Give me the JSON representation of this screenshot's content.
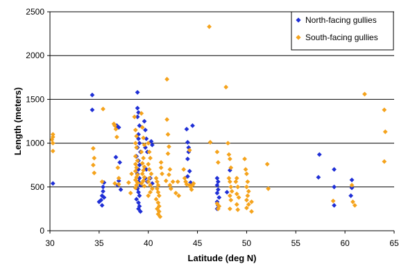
{
  "chart_data": {
    "type": "scatter",
    "xlabel": "Latitude (deg N)",
    "ylabel": "Length (meters)",
    "xlim": [
      30,
      65
    ],
    "ylim": [
      0,
      2500
    ],
    "xticks": [
      30,
      35,
      40,
      45,
      50,
      55,
      60,
      65
    ],
    "yticks": [
      0,
      500,
      1000,
      1500,
      2000,
      2500
    ],
    "grid": "horizontal",
    "legend_position": "top-right",
    "series": [
      {
        "name": "North-facing gullies",
        "color": "#1f2fd6",
        "marker": "diamond",
        "points": [
          [
            30.3,
            540
          ],
          [
            34.3,
            1550
          ],
          [
            34.3,
            1380
          ],
          [
            35.0,
            330
          ],
          [
            35.2,
            350
          ],
          [
            35.3,
            290
          ],
          [
            35.3,
            400
          ],
          [
            35.4,
            450
          ],
          [
            35.5,
            380
          ],
          [
            35.4,
            500
          ],
          [
            35.5,
            550
          ],
          [
            36.7,
            840
          ],
          [
            36.8,
            1200
          ],
          [
            36.9,
            520
          ],
          [
            37.0,
            570
          ],
          [
            37.1,
            780
          ],
          [
            37.2,
            470
          ],
          [
            37.0,
            1180
          ],
          [
            38.9,
            1580
          ],
          [
            38.9,
            1400
          ],
          [
            39.0,
            1350
          ],
          [
            38.9,
            1300
          ],
          [
            39.1,
            1200
          ],
          [
            39.0,
            1100
          ],
          [
            39.0,
            1050
          ],
          [
            39.1,
            1000
          ],
          [
            38.9,
            950
          ],
          [
            39.2,
            900
          ],
          [
            38.8,
            850
          ],
          [
            39.0,
            800
          ],
          [
            39.1,
            750
          ],
          [
            39.0,
            700
          ],
          [
            38.9,
            650
          ],
          [
            39.1,
            600
          ],
          [
            39.0,
            560
          ],
          [
            39.2,
            520
          ],
          [
            38.9,
            480
          ],
          [
            39.0,
            440
          ],
          [
            39.1,
            400
          ],
          [
            38.8,
            360
          ],
          [
            39.0,
            320
          ],
          [
            39.1,
            280
          ],
          [
            39.0,
            250
          ],
          [
            39.2,
            220
          ],
          [
            39.6,
            1250
          ],
          [
            39.7,
            1150
          ],
          [
            39.8,
            1050
          ],
          [
            39.7,
            950
          ],
          [
            39.9,
            900
          ],
          [
            39.8,
            700
          ],
          [
            39.7,
            600
          ],
          [
            39.9,
            560
          ],
          [
            40.3,
            1020
          ],
          [
            40.4,
            980
          ],
          [
            40.2,
            600
          ],
          [
            40.4,
            540
          ],
          [
            43.9,
            1160
          ],
          [
            44.0,
            1010
          ],
          [
            44.1,
            950
          ],
          [
            44.1,
            900
          ],
          [
            44.0,
            820
          ],
          [
            44.2,
            680
          ],
          [
            44.0,
            620
          ],
          [
            44.3,
            550
          ],
          [
            44.5,
            1200
          ],
          [
            47.0,
            600
          ],
          [
            47.1,
            560
          ],
          [
            47.0,
            520
          ],
          [
            47.1,
            470
          ],
          [
            47.0,
            430
          ],
          [
            47.2,
            380
          ],
          [
            47.0,
            330
          ],
          [
            47.1,
            290
          ],
          [
            47.0,
            250
          ],
          [
            48.3,
            690
          ],
          [
            48.0,
            440
          ],
          [
            57.4,
            870
          ],
          [
            57.3,
            610
          ],
          [
            58.9,
            700
          ],
          [
            58.9,
            500
          ],
          [
            58.9,
            290
          ],
          [
            60.7,
            580
          ],
          [
            60.7,
            490
          ],
          [
            60.6,
            400
          ]
        ]
      },
      {
        "name": "South-facing gullies",
        "color": "#f5a31c",
        "marker": "diamond",
        "points": [
          [
            30.3,
            1100
          ],
          [
            30.3,
            1070
          ],
          [
            30.2,
            1040
          ],
          [
            30.3,
            1000
          ],
          [
            30.3,
            910
          ],
          [
            34.4,
            940
          ],
          [
            34.5,
            830
          ],
          [
            34.4,
            750
          ],
          [
            34.5,
            660
          ],
          [
            35.4,
            1390
          ],
          [
            35.3,
            560
          ],
          [
            36.5,
            1220
          ],
          [
            36.6,
            1200
          ],
          [
            36.7,
            1160
          ],
          [
            36.8,
            1070
          ],
          [
            36.9,
            720
          ],
          [
            37.0,
            600
          ],
          [
            37.0,
            530
          ],
          [
            36.6,
            540
          ],
          [
            38.0,
            550
          ],
          [
            38.2,
            430
          ],
          [
            38.3,
            650
          ],
          [
            38.6,
            1300
          ],
          [
            38.7,
            1150
          ],
          [
            38.8,
            1080
          ],
          [
            38.7,
            1000
          ],
          [
            38.8,
            950
          ],
          [
            38.7,
            850
          ],
          [
            38.9,
            800
          ],
          [
            38.7,
            760
          ],
          [
            38.8,
            720
          ],
          [
            38.7,
            680
          ],
          [
            38.9,
            640
          ],
          [
            38.8,
            610
          ],
          [
            38.7,
            580
          ],
          [
            38.9,
            550
          ],
          [
            38.8,
            520
          ],
          [
            38.7,
            490
          ],
          [
            39.3,
            1340
          ],
          [
            39.4,
            1180
          ],
          [
            39.5,
            1060
          ],
          [
            39.6,
            980
          ],
          [
            39.3,
            900
          ],
          [
            39.5,
            830
          ],
          [
            39.4,
            770
          ],
          [
            39.6,
            730
          ],
          [
            39.5,
            690
          ],
          [
            39.4,
            650
          ],
          [
            39.6,
            610
          ],
          [
            39.5,
            570
          ],
          [
            39.3,
            540
          ],
          [
            39.6,
            510
          ],
          [
            40.0,
            1000
          ],
          [
            40.1,
            900
          ],
          [
            40.2,
            830
          ],
          [
            40.0,
            760
          ],
          [
            40.1,
            700
          ],
          [
            40.3,
            650
          ],
          [
            40.1,
            600
          ],
          [
            40.0,
            560
          ],
          [
            40.2,
            520
          ],
          [
            40.4,
            480
          ],
          [
            40.2,
            440
          ],
          [
            40.0,
            400
          ],
          [
            40.8,
            600
          ],
          [
            40.9,
            560
          ],
          [
            41.0,
            520
          ],
          [
            40.9,
            480
          ],
          [
            41.0,
            440
          ],
          [
            41.1,
            400
          ],
          [
            40.8,
            360
          ],
          [
            41.0,
            320
          ],
          [
            41.1,
            280
          ],
          [
            40.9,
            250
          ],
          [
            41.1,
            220
          ],
          [
            41.0,
            190
          ],
          [
            41.2,
            160
          ],
          [
            41.3,
            780
          ],
          [
            41.3,
            720
          ],
          [
            41.4,
            650
          ],
          [
            41.9,
            1730
          ],
          [
            41.9,
            1270
          ],
          [
            42.0,
            1100
          ],
          [
            42.1,
            960
          ],
          [
            42.0,
            880
          ],
          [
            42.2,
            700
          ],
          [
            42.1,
            640
          ],
          [
            41.8,
            570
          ],
          [
            42.2,
            520
          ],
          [
            42.3,
            480
          ],
          [
            42.5,
            560
          ],
          [
            42.8,
            430
          ],
          [
            43.0,
            560
          ],
          [
            43.1,
            400
          ],
          [
            43.6,
            700
          ],
          [
            43.7,
            600
          ],
          [
            43.8,
            560
          ],
          [
            43.9,
            530
          ],
          [
            44.2,
            520
          ],
          [
            44.3,
            500
          ],
          [
            44.5,
            520
          ],
          [
            44.4,
            470
          ],
          [
            44.6,
            540
          ],
          [
            44.2,
            920
          ],
          [
            46.2,
            2330
          ],
          [
            46.3,
            1010
          ],
          [
            47.0,
            900
          ],
          [
            47.1,
            780
          ],
          [
            47.0,
            310
          ],
          [
            47.2,
            280
          ],
          [
            47.1,
            250
          ],
          [
            47.9,
            1640
          ],
          [
            48.1,
            1000
          ],
          [
            48.2,
            870
          ],
          [
            48.3,
            820
          ],
          [
            48.4,
            720
          ],
          [
            48.2,
            600
          ],
          [
            48.3,
            560
          ],
          [
            48.4,
            500
          ],
          [
            48.5,
            450
          ],
          [
            48.3,
            400
          ],
          [
            48.4,
            350
          ],
          [
            48.3,
            250
          ],
          [
            48.9,
            560
          ],
          [
            49.0,
            600
          ],
          [
            49.1,
            500
          ],
          [
            49.0,
            420
          ],
          [
            49.2,
            380
          ],
          [
            49.0,
            300
          ],
          [
            49.1,
            240
          ],
          [
            49.8,
            820
          ],
          [
            49.9,
            700
          ],
          [
            50.0,
            650
          ],
          [
            50.1,
            560
          ],
          [
            50.0,
            500
          ],
          [
            50.2,
            450
          ],
          [
            50.1,
            400
          ],
          [
            50.0,
            350
          ],
          [
            50.2,
            300
          ],
          [
            50.0,
            260
          ],
          [
            50.5,
            330
          ],
          [
            50.5,
            220
          ],
          [
            52.1,
            760
          ],
          [
            52.2,
            480
          ],
          [
            58.8,
            340
          ],
          [
            60.7,
            520
          ],
          [
            60.8,
            330
          ],
          [
            61.0,
            290
          ],
          [
            62.0,
            1560
          ],
          [
            64.0,
            1380
          ],
          [
            64.1,
            1130
          ],
          [
            64.0,
            790
          ]
        ]
      }
    ]
  }
}
